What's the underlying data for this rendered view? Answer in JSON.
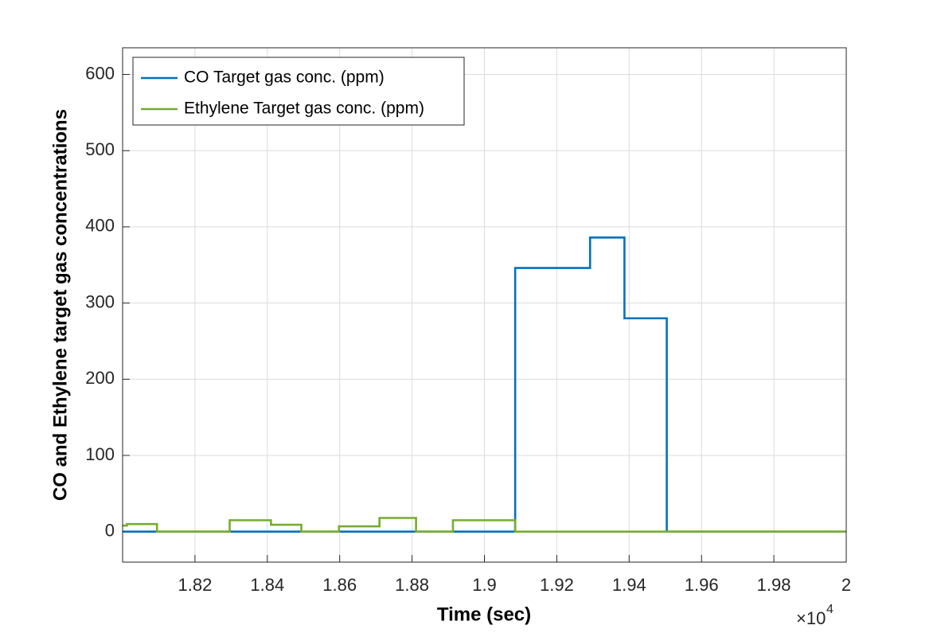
{
  "chart_data": {
    "type": "line",
    "xlabel": "Time (sec)",
    "ylabel": "CO and Ethylene target gas concentrations",
    "x_multiplier": {
      "base": "×10",
      "exponent": "4"
    },
    "xlim": [
      1.8,
      2.0
    ],
    "xticks": [
      1.82,
      1.84,
      1.86,
      1.88,
      1.9,
      1.92,
      1.94,
      1.96,
      1.98,
      2
    ],
    "ylim": [
      -40,
      635
    ],
    "yticks": [
      0,
      100,
      200,
      300,
      400,
      500,
      600
    ],
    "grid": true,
    "legend": "upper-left",
    "series": [
      {
        "name": "CO Target gas conc. (ppm)",
        "color": "#0072BD",
        "x": [
          1.8,
          1.9085,
          1.9085,
          1.9292,
          1.9292,
          1.9387,
          1.9387,
          1.9504,
          1.9504,
          2.0
        ],
        "values": [
          0,
          0,
          346,
          346,
          386,
          386,
          280,
          280,
          0,
          0
        ]
      },
      {
        "name": "Ethylene Target gas conc. (ppm)",
        "color": "#77AC30",
        "x": [
          1.8,
          1.8012,
          1.8012,
          1.8095,
          1.8095,
          1.8296,
          1.8296,
          1.841,
          1.841,
          1.8494,
          1.8494,
          1.8598,
          1.8598,
          1.871,
          1.871,
          1.8811,
          1.8811,
          1.8913,
          1.8913,
          1.9085,
          1.9085,
          2.0
        ],
        "values": [
          8,
          8,
          10,
          10,
          0,
          0,
          15,
          15,
          9,
          9,
          0,
          0,
          7,
          7,
          18,
          18,
          0,
          0,
          15,
          15,
          0,
          0
        ]
      }
    ]
  }
}
